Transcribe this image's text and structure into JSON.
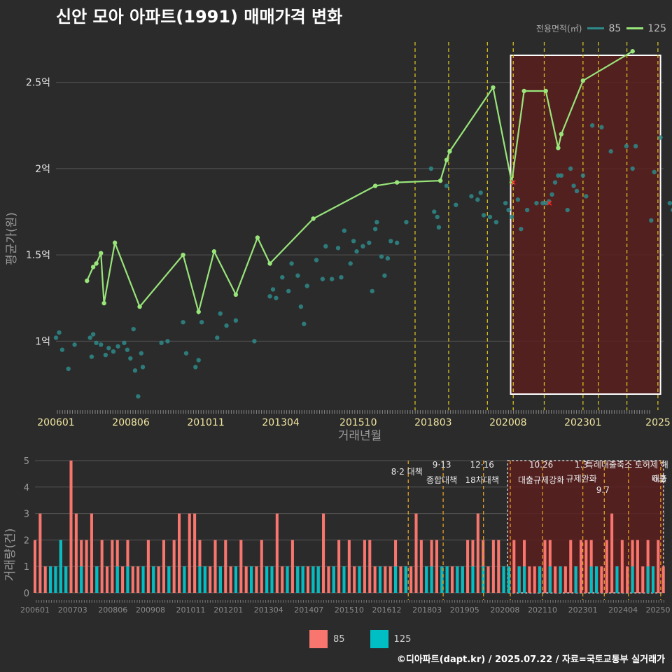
{
  "title": "신안 모아 아파트(1991) 매매가격 변화",
  "legend": {
    "title": "전용면적(㎡)",
    "items": [
      {
        "label": "85",
        "color": "#2e8a8a"
      },
      {
        "label": "125",
        "color": "#98e57a"
      }
    ]
  },
  "footer": "©디아파트(dapt.kr) / 2025.07.22 / 자료=국토교통부 실거래가",
  "chart_data": [
    {
      "type": "line",
      "title": "",
      "xlabel": "거래년월",
      "ylabel": "평균가(원)",
      "x_ticks": [
        "200601",
        "200806",
        "201011",
        "201304",
        "201510",
        "201803",
        "202008",
        "202301",
        "2025"
      ],
      "y_ticks": [
        "1억",
        "1.5억",
        "2억",
        "2.5억"
      ],
      "ylim": [
        0.6,
        2.75
      ],
      "grid": true,
      "legend_position": "top-right",
      "shaded_region": {
        "from": "202009",
        "to": "202507",
        "fill": "#5a1f1f",
        "border": "#ffffff"
      },
      "policy_lines_x": [
        "201708",
        "201809",
        "201912",
        "202010",
        "202110",
        "202301",
        "202307",
        "202406",
        "202506"
      ],
      "red_x_marks": [
        {
          "x": "202010",
          "y": 1.92
        },
        {
          "x": "202112",
          "y": 1.8
        }
      ],
      "series": [
        {
          "name": "125",
          "color": "#98e57a",
          "points": [
            [
              2007.0,
              1.35
            ],
            [
              2007.2,
              1.43
            ],
            [
              2007.3,
              1.45
            ],
            [
              2007.45,
              1.51
            ],
            [
              2007.55,
              1.22
            ],
            [
              2007.9,
              1.57
            ],
            [
              2008.7,
              1.2
            ],
            [
              2010.1,
              1.5
            ],
            [
              2010.6,
              1.17
            ],
            [
              2011.1,
              1.52
            ],
            [
              2011.8,
              1.27
            ],
            [
              2012.5,
              1.6
            ],
            [
              2012.9,
              1.45
            ],
            [
              2014.3,
              1.71
            ],
            [
              2016.3,
              1.9
            ],
            [
              2017.0,
              1.92
            ],
            [
              2018.4,
              1.93
            ],
            [
              2018.6,
              2.05
            ],
            [
              2018.7,
              2.1
            ],
            [
              2020.1,
              2.47
            ],
            [
              2020.7,
              1.92
            ],
            [
              2021.1,
              2.45
            ],
            [
              2021.8,
              2.45
            ],
            [
              2022.2,
              2.12
            ],
            [
              2022.3,
              2.2
            ],
            [
              2023.0,
              2.51
            ],
            [
              2024.6,
              2.68
            ]
          ]
        },
        {
          "name": "85",
          "color": "#2e8a8a",
          "points": [
            [
              2006.0,
              1.02
            ],
            [
              2006.1,
              1.05
            ],
            [
              2006.2,
              0.95
            ],
            [
              2006.4,
              0.84
            ],
            [
              2006.6,
              0.98
            ],
            [
              2007.1,
              1.02
            ],
            [
              2007.15,
              0.91
            ],
            [
              2007.2,
              1.04
            ],
            [
              2007.3,
              0.99
            ],
            [
              2007.45,
              0.98
            ],
            [
              2007.6,
              0.92
            ],
            [
              2007.7,
              0.96
            ],
            [
              2007.85,
              0.94
            ],
            [
              2008.0,
              0.97
            ],
            [
              2008.2,
              0.99
            ],
            [
              2008.3,
              0.95
            ],
            [
              2008.4,
              0.9
            ],
            [
              2008.5,
              1.07
            ],
            [
              2008.55,
              0.83
            ],
            [
              2008.65,
              0.68
            ],
            [
              2008.75,
              0.93
            ],
            [
              2008.8,
              0.85
            ],
            [
              2009.4,
              0.99
            ],
            [
              2009.6,
              1.0
            ],
            [
              2010.1,
              1.11
            ],
            [
              2010.2,
              0.93
            ],
            [
              2010.5,
              0.85
            ],
            [
              2010.6,
              0.89
            ],
            [
              2010.7,
              1.11
            ],
            [
              2011.2,
              1.02
            ],
            [
              2011.3,
              1.16
            ],
            [
              2011.5,
              1.09
            ],
            [
              2011.8,
              1.12
            ],
            [
              2012.4,
              1.0
            ],
            [
              2012.9,
              1.26
            ],
            [
              2013.0,
              1.3
            ],
            [
              2013.1,
              1.25
            ],
            [
              2013.3,
              1.37
            ],
            [
              2013.5,
              1.29
            ],
            [
              2013.6,
              1.45
            ],
            [
              2013.8,
              1.38
            ],
            [
              2013.9,
              1.2
            ],
            [
              2014.0,
              1.1
            ],
            [
              2014.1,
              1.32
            ],
            [
              2014.4,
              1.47
            ],
            [
              2014.6,
              1.36
            ],
            [
              2014.7,
              1.55
            ],
            [
              2014.9,
              1.36
            ],
            [
              2015.1,
              1.54
            ],
            [
              2015.2,
              1.37
            ],
            [
              2015.3,
              1.64
            ],
            [
              2015.5,
              1.45
            ],
            [
              2015.6,
              1.58
            ],
            [
              2015.7,
              1.52
            ],
            [
              2015.9,
              1.55
            ],
            [
              2016.1,
              1.57
            ],
            [
              2016.2,
              1.29
            ],
            [
              2016.3,
              1.65
            ],
            [
              2016.35,
              1.69
            ],
            [
              2016.5,
              1.49
            ],
            [
              2016.6,
              1.38
            ],
            [
              2016.7,
              1.48
            ],
            [
              2016.8,
              1.58
            ],
            [
              2017.0,
              1.57
            ],
            [
              2017.3,
              1.69
            ],
            [
              2018.1,
              2.0
            ],
            [
              2018.2,
              1.75
            ],
            [
              2018.3,
              1.72
            ],
            [
              2018.35,
              1.66
            ],
            [
              2018.6,
              1.9
            ],
            [
              2018.9,
              1.79
            ],
            [
              2019.4,
              1.84
            ],
            [
              2019.6,
              1.82
            ],
            [
              2019.7,
              1.86
            ],
            [
              2019.8,
              1.73
            ],
            [
              2020.0,
              1.72
            ],
            [
              2020.2,
              1.69
            ],
            [
              2020.5,
              1.8
            ],
            [
              2020.6,
              1.76
            ],
            [
              2020.7,
              1.72
            ],
            [
              2020.9,
              1.82
            ],
            [
              2021.0,
              1.65
            ],
            [
              2021.2,
              1.76
            ],
            [
              2021.5,
              1.8
            ],
            [
              2021.7,
              1.8
            ],
            [
              2021.8,
              1.8
            ],
            [
              2021.9,
              1.81
            ],
            [
              2022.0,
              1.85
            ],
            [
              2022.1,
              1.92
            ],
            [
              2022.2,
              1.96
            ],
            [
              2022.3,
              1.96
            ],
            [
              2022.5,
              1.76
            ],
            [
              2022.6,
              2.0
            ],
            [
              2022.7,
              1.9
            ],
            [
              2022.8,
              1.87
            ],
            [
              2023.0,
              1.96
            ],
            [
              2023.1,
              1.84
            ],
            [
              2023.3,
              2.25
            ],
            [
              2023.6,
              2.24
            ],
            [
              2023.9,
              2.1
            ],
            [
              2024.4,
              2.13
            ],
            [
              2024.6,
              2.0
            ],
            [
              2024.7,
              2.13
            ],
            [
              2025.2,
              1.7
            ],
            [
              2025.3,
              1.98
            ],
            [
              2025.5,
              2.18
            ],
            [
              2025.8,
              1.8
            ],
            [
              2025.9,
              1.76
            ],
            [
              2026.1,
              1.8
            ],
            [
              2026.5,
              2.05
            ],
            [
              2026.8,
              2.11
            ],
            [
              2026.9,
              1.9
            ]
          ]
        }
      ]
    },
    {
      "type": "bar",
      "title": "",
      "xlabel": "",
      "ylabel": "거래량(건)",
      "x_ticks": [
        "200601",
        "200703",
        "200806",
        "200908",
        "201011",
        "201201",
        "201304",
        "201407",
        "201510",
        "201612",
        "201803",
        "201905",
        "202008",
        "202110",
        "202301",
        "202404",
        "20250"
      ],
      "y_ticks": [
        "0",
        "1",
        "2",
        "3",
        "4",
        "5"
      ],
      "ylim": [
        0,
        5
      ],
      "grid": true,
      "shaded_region": {
        "from": "202009",
        "to": "202507",
        "fill": "#5a1f1f",
        "border": "#cccccc"
      },
      "annotations": [
        {
          "line": "8·2 대책",
          "x": "201708"
        },
        {
          "line": "9·13",
          "x": "201809"
        },
        {
          "line": "종합대책",
          "x": "201809"
        },
        {
          "line": "12·16",
          "x": "201912"
        },
        {
          "line": "18차대책",
          "x": "201912"
        },
        {
          "line": "10.26",
          "x": "202110"
        },
        {
          "line": "대출규제강화",
          "x": "202110"
        },
        {
          "line": "1.3",
          "x": "202301"
        },
        {
          "line": "규제완화",
          "x": "202301"
        },
        {
          "line": "9.7",
          "x": "202309"
        },
        {
          "line": "특례대출축소 토허제 해",
          "x": "202406"
        },
        {
          "line": "6.2",
          "x": "202506"
        },
        {
          "line": "대출",
          "x": "202506"
        }
      ],
      "series": [
        {
          "name": "85",
          "color": "#f8766d",
          "values": [
            2,
            3,
            1,
            1,
            1,
            2,
            1,
            5,
            3,
            2,
            2,
            3,
            1,
            2,
            1,
            2,
            2,
            1,
            2,
            1,
            1,
            1,
            2,
            1,
            1,
            2,
            1,
            2,
            3,
            1,
            3,
            3,
            2,
            1,
            1,
            2,
            1,
            2,
            1,
            1,
            2,
            1,
            1,
            1,
            2,
            1,
            1,
            3,
            1,
            1,
            2,
            1,
            1,
            1,
            1,
            1,
            3,
            1,
            1,
            2,
            1,
            2,
            1,
            1,
            2,
            2,
            1,
            1,
            1,
            1,
            2,
            1,
            1,
            1,
            3,
            2,
            1,
            2,
            2,
            1,
            1,
            1,
            1,
            1,
            2,
            2,
            3,
            2,
            1,
            2,
            2,
            1,
            1,
            2,
            1,
            2,
            1,
            1,
            1,
            2,
            2,
            1,
            1,
            1,
            2,
            1,
            2,
            2,
            2,
            1,
            1,
            2,
            3,
            1,
            2,
            1,
            2,
            2,
            1,
            2,
            1,
            2,
            1
          ]
        },
        {
          "name": "125",
          "color": "#00bfc4",
          "values": [
            0,
            0,
            0,
            1,
            1,
            2,
            1,
            0,
            0,
            1,
            0,
            0,
            1,
            0,
            0,
            0,
            1,
            0,
            1,
            0,
            0,
            1,
            0,
            1,
            0,
            0,
            1,
            0,
            0,
            1,
            0,
            0,
            1,
            1,
            0,
            0,
            1,
            0,
            0,
            1,
            0,
            0,
            1,
            0,
            0,
            1,
            1,
            0,
            0,
            1,
            0,
            1,
            1,
            0,
            1,
            1,
            0,
            0,
            1,
            0,
            1,
            0,
            0,
            1,
            0,
            0,
            0,
            1,
            0,
            0,
            1,
            0,
            1,
            0,
            0,
            0,
            1,
            1,
            0,
            1,
            1,
            0,
            1,
            1,
            0,
            1,
            0,
            1,
            0,
            0,
            0,
            1,
            1,
            0,
            1,
            1,
            0,
            0,
            1,
            0,
            1,
            0,
            1,
            0,
            0,
            1,
            0,
            0,
            1,
            1,
            0,
            0,
            0,
            1,
            0,
            0,
            1,
            0,
            0,
            1,
            1,
            0,
            0
          ]
        }
      ]
    }
  ]
}
